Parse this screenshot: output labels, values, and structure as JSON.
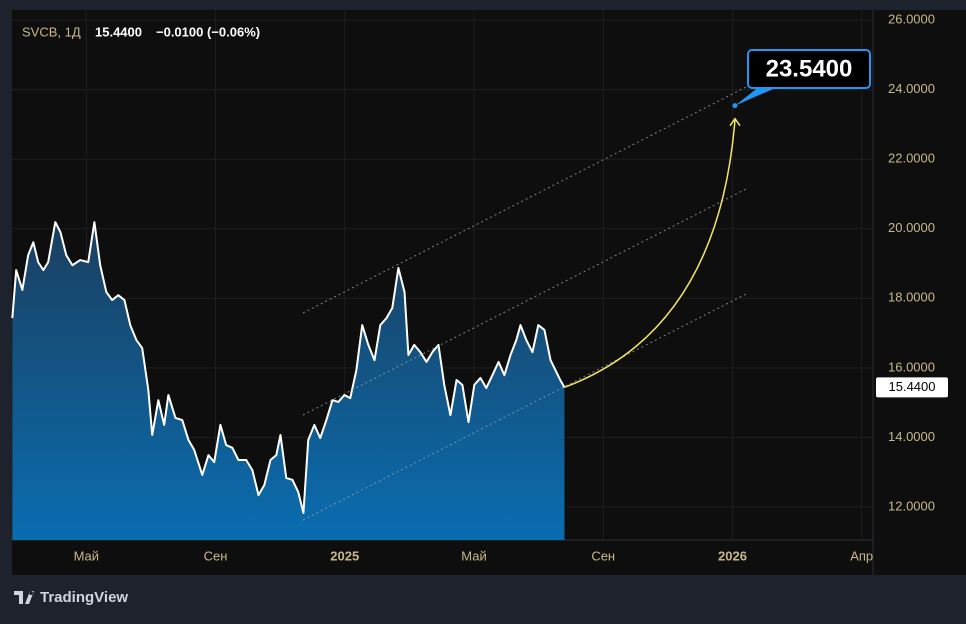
{
  "chart_data": {
    "type": "area",
    "header": {
      "symbol": "SVCB, 1Д",
      "last": "15.4400",
      "change": "−0.0100 (−0.06%)"
    },
    "brand": "TradingView",
    "color": "#ffffff",
    "x": [
      1.71,
      1.83,
      2.02,
      2.2,
      2.36,
      2.51,
      2.67,
      2.82,
      3.04,
      3.2,
      3.38,
      3.57,
      3.81,
      4.06,
      4.25,
      4.43,
      4.62,
      4.8,
      4.99,
      5.18,
      5.36,
      5.55,
      5.73,
      5.92,
      6.04,
      6.23,
      6.41,
      6.54,
      6.76,
      6.97,
      7.16,
      7.34,
      7.59,
      7.78,
      7.96,
      8.15,
      8.33,
      8.52,
      8.71,
      8.95,
      9.14,
      9.33,
      9.51,
      9.7,
      9.88,
      10.01,
      10.19,
      10.38,
      10.56,
      10.72,
      10.87,
      11.06,
      11.24,
      11.43,
      11.62,
      11.8,
      11.99,
      12.17,
      12.36,
      12.54,
      12.73,
      12.92,
      13.1,
      13.29,
      13.47,
      13.66,
      13.85,
      13.97,
      14.15,
      14.34,
      14.53,
      14.71,
      14.9,
      15.08,
      15.27,
      15.46,
      15.64,
      15.83,
      16.01,
      16.2,
      16.38,
      16.57,
      16.76,
      16.94,
      17.13,
      17.31,
      17.44,
      17.62,
      17.81,
      17.99,
      18.18,
      18.37,
      18.55,
      18.67,
      18.8
    ],
    "values": [
      17.43,
      18.81,
      18.24,
      19.24,
      19.61,
      19.04,
      18.81,
      19.04,
      20.19,
      19.9,
      19.24,
      18.95,
      19.1,
      19.04,
      20.19,
      18.95,
      18.18,
      17.95,
      18.09,
      17.95,
      17.23,
      16.8,
      16.57,
      15.36,
      14.07,
      15.07,
      14.36,
      15.22,
      14.56,
      14.5,
      13.93,
      13.64,
      12.92,
      13.49,
      13.29,
      14.36,
      13.78,
      13.7,
      13.35,
      13.35,
      13.06,
      12.34,
      12.63,
      13.35,
      13.49,
      14.07,
      12.83,
      12.78,
      12.43,
      11.83,
      13.93,
      14.36,
      13.98,
      14.5,
      15.07,
      15.02,
      15.22,
      15.13,
      15.94,
      17.23,
      16.66,
      16.22,
      17.23,
      17.43,
      17.72,
      18.87,
      18.18,
      16.37,
      16.66,
      16.45,
      16.17,
      16.45,
      16.66,
      15.51,
      14.64,
      15.65,
      15.51,
      14.44,
      15.51,
      15.71,
      15.42,
      15.79,
      16.17,
      15.79,
      16.37,
      16.8,
      17.23,
      16.8,
      16.45,
      17.23,
      17.09,
      16.22,
      15.88,
      15.65,
      15.44
    ],
    "last_price": {
      "value": 15.44,
      "label": "15.4400"
    },
    "target": {
      "value": 23.54,
      "label": "23.5400"
    },
    "xlim": [
      1.7,
      28.35
    ],
    "ylim": [
      11.05,
      26.29
    ],
    "xticks": [
      {
        "value": 4,
        "label": "Май"
      },
      {
        "value": 8,
        "label": "Сен"
      },
      {
        "value": 12,
        "label": "2025",
        "bold": true
      },
      {
        "value": 16,
        "label": "Май"
      },
      {
        "value": 20,
        "label": "Сен"
      },
      {
        "value": 24,
        "label": "2026",
        "bold": true
      },
      {
        "value": 28,
        "label": "Апр"
      }
    ],
    "yticks": [
      {
        "value": 12,
        "label": "12.0000"
      },
      {
        "value": 14,
        "label": "14.0000"
      },
      {
        "value": 16,
        "label": "16.0000"
      },
      {
        "value": 18,
        "label": "18.0000"
      },
      {
        "value": 20,
        "label": "20.0000"
      },
      {
        "value": 22,
        "label": "22.0000"
      },
      {
        "value": 24,
        "label": "24.0000"
      },
      {
        "value": 26,
        "label": "26.0000"
      }
    ],
    "grid": true
  }
}
